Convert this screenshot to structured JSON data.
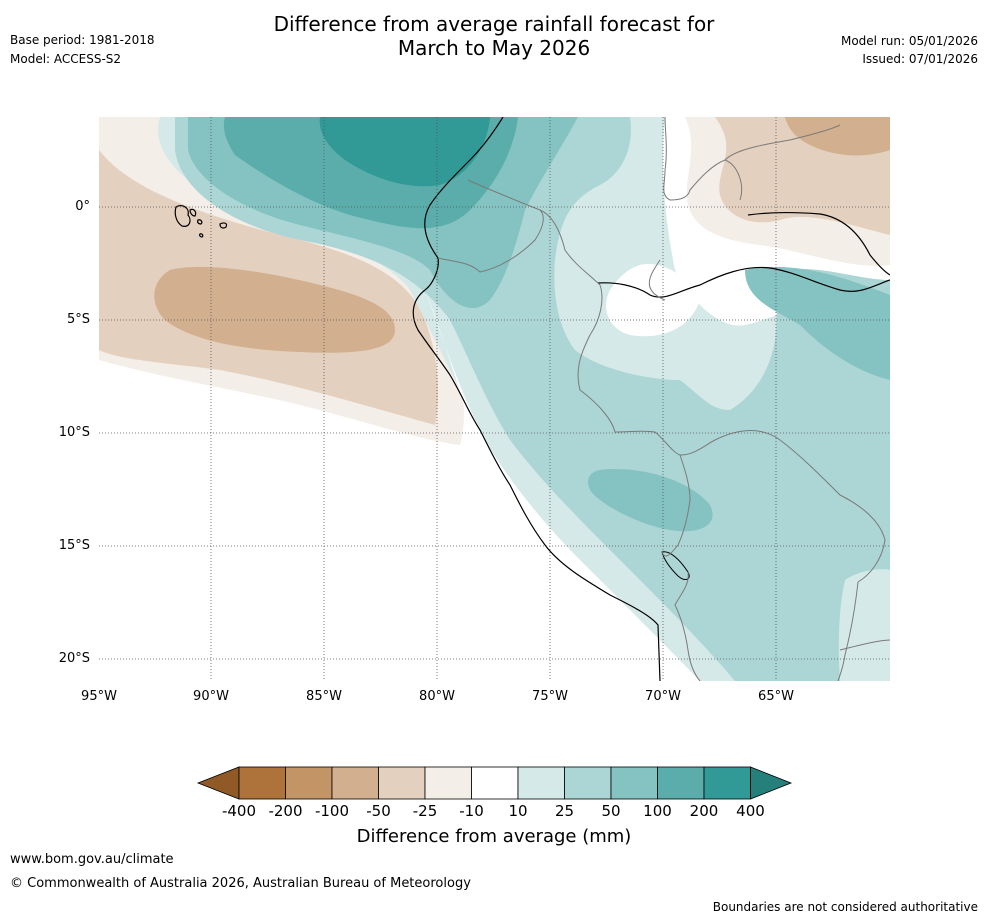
{
  "header": {
    "title_line1": "Difference from average rainfall forecast for",
    "title_line2": "March to May 2026",
    "base_period": "Base period: 1981-2018",
    "model": "Model: ACCESS-S2",
    "model_run": "Model run: 05/01/2026",
    "issued": "Issued: 07/01/2026"
  },
  "map": {
    "lat_labels": [
      "0°",
      "5°S",
      "10°S",
      "15°S",
      "20°S"
    ],
    "lon_labels": [
      "95°W",
      "90°W",
      "85°W",
      "80°W",
      "75°W",
      "70°W",
      "65°W"
    ]
  },
  "colorbar": {
    "title": "Difference from average (mm)",
    "ticks": [
      "-400",
      "-200",
      "-100",
      "-50",
      "-25",
      "-10",
      "10",
      "25",
      "50",
      "100",
      "200",
      "400"
    ],
    "colors": {
      "under": "#8f5a25",
      "c1": "#ad733a",
      "c2": "#c29466",
      "c3": "#d2b08f",
      "c4": "#e4d0bf",
      "c5": "#f3eee8",
      "c6": "#ffffff",
      "c7": "#d5e9e8",
      "c8": "#acd6d5",
      "c9": "#84c3c1",
      "c10": "#5aadaa",
      "c11": "#319a96",
      "over": "#25807b"
    }
  },
  "footer": {
    "url": "www.bom.gov.au/climate",
    "copyright": "© Commonwealth of Australia 2026, Australian Bureau of Meteorology",
    "disclaimer": "Boundaries are not considered authoritative"
  }
}
